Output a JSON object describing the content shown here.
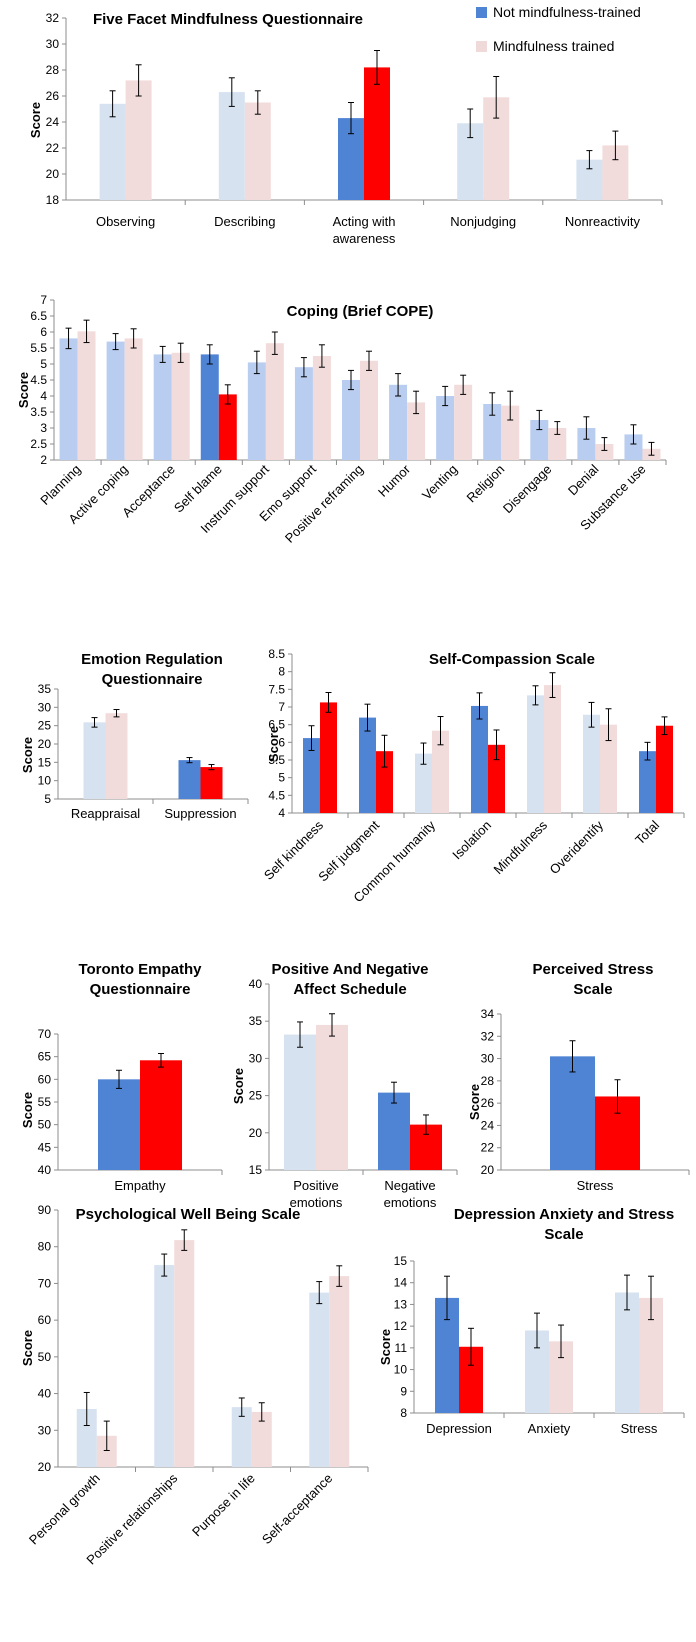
{
  "legend": {
    "series": [
      {
        "name": "Not mindfulness-trained",
        "color": "#4f83d3"
      },
      {
        "name": "Mindfulness trained",
        "color": "#f0d9d9"
      }
    ]
  },
  "colors": {
    "blue_strong": "#4f83d3",
    "red_strong": "#ff0000",
    "blue_light": "#d6e2f0",
    "red_light": "#f2dcdb",
    "blue_mid": "#b8cdf0",
    "axis": "#8c8c8c"
  },
  "chart_data": [
    {
      "id": "ffmq",
      "type": "bar",
      "title": [
        "Five Facet Mindfulness Questionnaire"
      ],
      "ylabel": "Score",
      "ylim": [
        18,
        32
      ],
      "yticks": [
        18,
        20,
        22,
        24,
        26,
        28,
        30,
        32
      ],
      "categories": [
        [
          "Observing"
        ],
        [
          "Describing"
        ],
        [
          "Acting with",
          "awareness"
        ],
        [
          "Nonjudging"
        ],
        [
          "Nonreactivity"
        ]
      ],
      "series": [
        {
          "name": "Not mindfulness-trained",
          "values": [
            25.4,
            26.3,
            24.3,
            23.9,
            21.1
          ],
          "errors": [
            1.0,
            1.1,
            1.2,
            1.1,
            0.7
          ]
        },
        {
          "name": "Mindfulness trained",
          "values": [
            27.2,
            25.5,
            28.2,
            25.9,
            22.2
          ],
          "errors": [
            1.2,
            0.9,
            1.3,
            1.6,
            1.1
          ]
        }
      ],
      "highlight": [
        false,
        false,
        true,
        false,
        false
      ]
    },
    {
      "id": "cope",
      "type": "bar",
      "title": [
        "Coping (Brief COPE)"
      ],
      "ylabel": "Score",
      "ylim": [
        2,
        7
      ],
      "yticks": [
        2,
        2.5,
        3,
        3.5,
        4,
        4.5,
        5,
        5.5,
        6,
        6.5,
        7
      ],
      "categories": [
        [
          "Planning"
        ],
        [
          "Active coping"
        ],
        [
          "Acceptance"
        ],
        [
          "Self blame"
        ],
        [
          "Instrum support"
        ],
        [
          "Emo support"
        ],
        [
          "Positive reframing"
        ],
        [
          "Humor"
        ],
        [
          "Venting"
        ],
        [
          "Religion"
        ],
        [
          "Disengage"
        ],
        [
          "Denial"
        ],
        [
          "Substance use"
        ]
      ],
      "series": [
        {
          "name": "Not mindfulness-trained",
          "values": [
            5.8,
            5.7,
            5.3,
            5.3,
            5.05,
            4.9,
            4.5,
            4.35,
            4.0,
            3.75,
            3.25,
            3.0,
            2.8
          ],
          "errors": [
            0.32,
            0.25,
            0.25,
            0.3,
            0.35,
            0.3,
            0.3,
            0.35,
            0.3,
            0.35,
            0.3,
            0.35,
            0.3
          ]
        },
        {
          "name": "Mindfulness trained",
          "values": [
            6.02,
            5.8,
            5.35,
            4.05,
            5.65,
            5.25,
            5.1,
            3.8,
            4.35,
            3.7,
            3.0,
            2.5,
            2.35
          ]
        },
        {
          "name": "err2",
          "values": [
            0.35,
            0.3,
            0.3,
            0.3,
            0.35,
            0.35,
            0.3,
            0.35,
            0.3,
            0.45,
            0.2,
            0.2,
            0.2
          ]
        }
      ],
      "highlight": [
        false,
        false,
        false,
        true,
        false,
        false,
        false,
        false,
        false,
        false,
        false,
        false,
        false
      ]
    },
    {
      "id": "erq",
      "type": "bar",
      "title": [
        "Emotion Regulation",
        "Questionnaire"
      ],
      "ylabel": "Score",
      "ylim": [
        5,
        35
      ],
      "yticks": [
        5,
        10,
        15,
        20,
        25,
        30,
        35
      ],
      "categories": [
        [
          "Reappraisal"
        ],
        [
          "Suppression"
        ]
      ],
      "series": [
        {
          "name": "Not mindfulness-trained",
          "values": [
            25.9,
            15.6
          ],
          "errors": [
            1.3,
            0.7
          ]
        },
        {
          "name": "Mindfulness trained",
          "values": [
            28.4,
            13.7
          ],
          "errors": [
            1.0,
            0.7
          ]
        }
      ],
      "highlight": [
        false,
        true
      ]
    },
    {
      "id": "scs",
      "type": "bar",
      "title": [
        "Self-Compassion Scale"
      ],
      "ylabel": "Score",
      "ylim": [
        4,
        8.5
      ],
      "yticks": [
        4,
        4.5,
        5,
        5.5,
        6,
        6.5,
        7,
        7.5,
        8,
        8.5
      ],
      "categories": [
        [
          "Self kindness"
        ],
        [
          "Self judgment"
        ],
        [
          "Common humanity"
        ],
        [
          "Isolation"
        ],
        [
          "Mindfulness"
        ],
        [
          "Overidentify"
        ],
        [
          "Total"
        ]
      ],
      "series": [
        {
          "name": "Not mindfulness-trained",
          "values": [
            6.12,
            6.7,
            5.68,
            7.03,
            7.33,
            6.78,
            5.75
          ],
          "errors": [
            0.35,
            0.38,
            0.3,
            0.37,
            0.27,
            0.35,
            0.25
          ]
        },
        {
          "name": "Mindfulness trained",
          "values": [
            7.13,
            5.75,
            6.33,
            5.93,
            7.62,
            6.5,
            6.47
          ],
          "errors": [
            0.28,
            0.45,
            0.4,
            0.42,
            0.35,
            0.45,
            0.25
          ]
        }
      ],
      "highlight": [
        true,
        true,
        false,
        true,
        false,
        false,
        true
      ]
    },
    {
      "id": "teq",
      "type": "bar",
      "title": [
        "Toronto Empathy",
        "Questionnaire"
      ],
      "ylabel": "Score",
      "ylim": [
        40,
        70
      ],
      "yticks": [
        40,
        45,
        50,
        55,
        60,
        65,
        70
      ],
      "categories": [
        [
          "Empathy"
        ]
      ],
      "series": [
        {
          "name": "Not mindfulness-trained",
          "values": [
            60.0
          ],
          "errors": [
            2.0
          ]
        },
        {
          "name": "Mindfulness trained",
          "values": [
            64.2
          ],
          "errors": [
            1.5
          ]
        }
      ],
      "highlight": [
        true
      ]
    },
    {
      "id": "panas",
      "type": "bar",
      "title": [
        "Positive And Negative",
        "Affect Schedule"
      ],
      "ylabel": "Score",
      "ylim": [
        15,
        40
      ],
      "yticks": [
        15,
        20,
        25,
        30,
        35,
        40
      ],
      "categories": [
        [
          "Positive",
          "emotions"
        ],
        [
          "Negative",
          "emotions"
        ]
      ],
      "series": [
        {
          "name": "Not mindfulness-trained",
          "values": [
            33.2,
            25.4
          ],
          "errors": [
            1.7,
            1.4
          ]
        },
        {
          "name": "Mindfulness trained",
          "values": [
            34.5,
            21.1
          ],
          "errors": [
            1.5,
            1.3
          ]
        }
      ],
      "highlight": [
        false,
        true
      ]
    },
    {
      "id": "pss",
      "type": "bar",
      "title": [
        "Perceived Stress",
        "Scale"
      ],
      "ylabel": "Score",
      "ylim": [
        20,
        34
      ],
      "yticks": [
        20,
        22,
        24,
        26,
        28,
        30,
        32,
        34
      ],
      "categories": [
        [
          "Stress"
        ]
      ],
      "series": [
        {
          "name": "Not mindfulness-trained",
          "values": [
            30.2
          ],
          "errors": [
            1.4
          ]
        },
        {
          "name": "Mindfulness trained",
          "values": [
            26.6
          ],
          "errors": [
            1.5
          ]
        }
      ],
      "highlight": [
        true
      ]
    },
    {
      "id": "pwb",
      "type": "bar",
      "title": [
        "Psychological Well Being Scale"
      ],
      "ylabel": "Score",
      "ylim": [
        20,
        90
      ],
      "yticks": [
        20,
        30,
        40,
        50,
        60,
        70,
        80,
        90
      ],
      "categories": [
        [
          "Personal growth"
        ],
        [
          "Positive relationships"
        ],
        [
          "Purpose in life"
        ],
        [
          "Self-acceptance"
        ]
      ],
      "series": [
        {
          "name": "Not mindfulness-trained",
          "values": [
            35.8,
            75.0,
            36.3,
            67.5
          ],
          "errors": [
            4.5,
            3.0,
            2.5,
            3.0
          ]
        },
        {
          "name": "Mindfulness trained",
          "values": [
            28.5,
            81.8,
            35.0,
            72.0
          ],
          "errors": [
            4.0,
            2.8,
            2.5,
            2.8
          ]
        }
      ],
      "highlight": [
        false,
        false,
        false,
        false
      ]
    },
    {
      "id": "dass",
      "type": "bar",
      "title": [
        "Depression Anxiety and Stress",
        "Scale"
      ],
      "ylabel": "Score",
      "ylim": [
        8,
        15
      ],
      "yticks": [
        8,
        9,
        10,
        11,
        12,
        13,
        14,
        15
      ],
      "categories": [
        [
          "Depression"
        ],
        [
          "Anxiety"
        ],
        [
          "Stress"
        ]
      ],
      "series": [
        {
          "name": "Not mindfulness-trained",
          "values": [
            13.3,
            11.8,
            13.55
          ],
          "errors": [
            1.0,
            0.8,
            0.8
          ]
        },
        {
          "name": "Mindfulness trained",
          "values": [
            11.05,
            11.3,
            13.3
          ],
          "errors": [
            0.85,
            0.75,
            1.0
          ]
        }
      ],
      "highlight": [
        true,
        false,
        false
      ]
    }
  ]
}
